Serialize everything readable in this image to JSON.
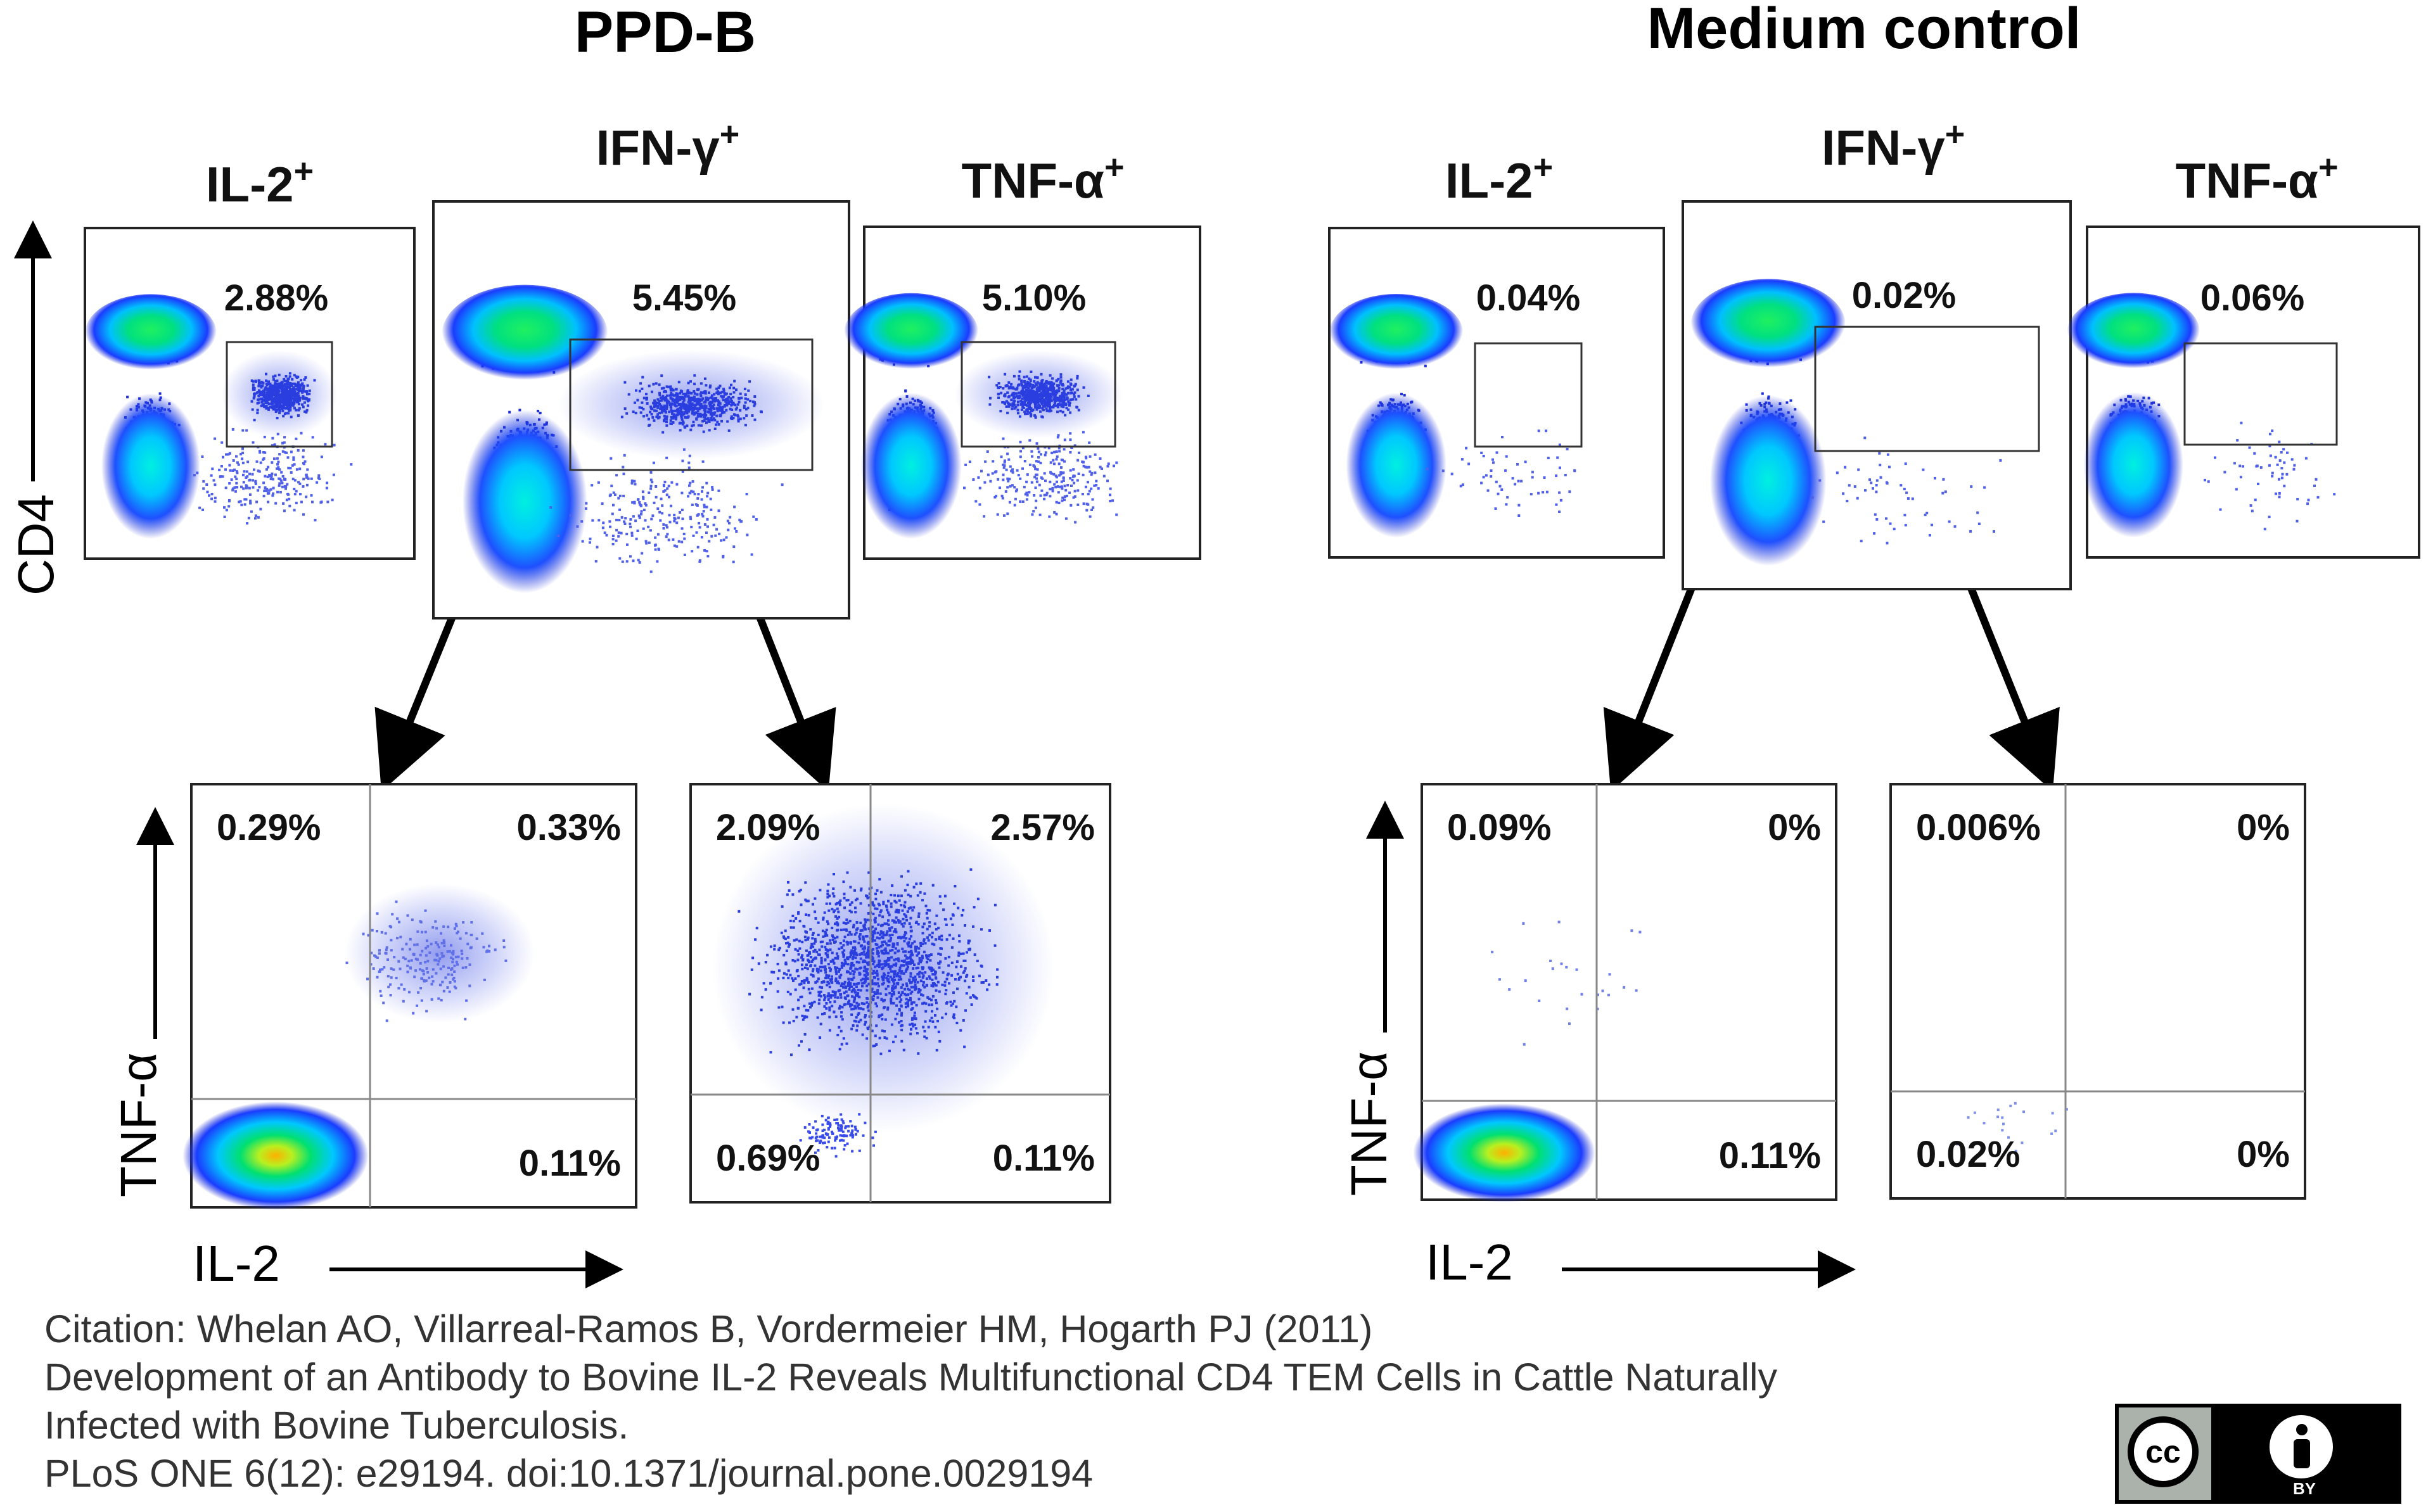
{
  "figure": {
    "groups": [
      {
        "title": "PPD-B"
      },
      {
        "title": "Medium control"
      }
    ],
    "y_axis_label_top": "CD4",
    "y_axis_label_bottom": "TNF-α",
    "x_axis_label_bottom": "IL-2"
  },
  "chart_data": [
    {
      "type": "scatter",
      "group": "PPD-B",
      "title_base": "IL-2",
      "title_sup": "+",
      "ylabel": "CD4",
      "gate_label": "2.88%"
    },
    {
      "type": "scatter",
      "group": "PPD-B",
      "title_base": "IFN-γ",
      "title_sup": "+",
      "gate_label": "5.45%"
    },
    {
      "type": "scatter",
      "group": "PPD-B",
      "title_base": "TNF-α",
      "title_sup": "+",
      "gate_label": "5.10%"
    },
    {
      "type": "scatter",
      "group": "Medium control",
      "title_base": "IL-2",
      "title_sup": "+",
      "ylabel": "CD4",
      "gate_label": "0.04%"
    },
    {
      "type": "scatter",
      "group": "Medium control",
      "title_base": "IFN-γ",
      "title_sup": "+",
      "gate_label": "0.02%"
    },
    {
      "type": "scatter",
      "group": "Medium control",
      "title_base": "TNF-α",
      "title_sup": "+",
      "gate_label": "0.06%"
    },
    {
      "type": "scatter",
      "group": "PPD-B",
      "xlabel": "IL-2",
      "ylabel": "TNF-α",
      "quadrants": {
        "upper_left": "0.29%",
        "upper_right": "0.33%",
        "lower_left": "",
        "lower_right": "0.11%"
      }
    },
    {
      "type": "scatter",
      "group": "PPD-B",
      "xlabel": "IL-2",
      "ylabel": "TNF-α",
      "quadrants": {
        "upper_left": "2.09%",
        "upper_right": "2.57%",
        "lower_left": "0.69%",
        "lower_right": "0.11%"
      }
    },
    {
      "type": "scatter",
      "group": "Medium control",
      "xlabel": "IL-2",
      "ylabel": "TNF-α",
      "quadrants": {
        "upper_left": "0.09%",
        "upper_right": "0%",
        "lower_left": "",
        "lower_right": "0.11%"
      }
    },
    {
      "type": "scatter",
      "group": "Medium control",
      "xlabel": "IL-2",
      "ylabel": "TNF-α",
      "quadrants": {
        "upper_left": "0.006%",
        "upper_right": "0%",
        "lower_left": "0.02%",
        "lower_right": "0%"
      }
    }
  ],
  "citation": {
    "line1": "Citation: Whelan AO, Villarreal-Ramos B, Vordermeier HM, Hogarth PJ (2011)",
    "line2": "Development of an Antibody to Bovine IL-2 Reveals Multifunctional CD4 TEM Cells in Cattle Naturally",
    "line3": "Infected with Bovine Tuberculosis.",
    "line4": "PLoS ONE 6(12): e29194. doi:10.1371/journal.pone.0029194"
  },
  "license": {
    "cc": "cc",
    "by": "BY"
  },
  "colors": {
    "dense": "#00e070",
    "mid": "#00c8ff",
    "sparse": "#1428d8",
    "frame": "#222222"
  }
}
